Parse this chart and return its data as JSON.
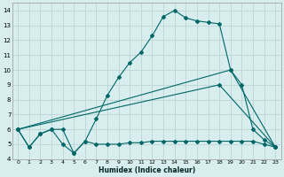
{
  "xlabel": "Humidex (Indice chaleur)",
  "bg_color": "#d8eeee",
  "grid_color": "#c0d8d8",
  "line_color": "#006666",
  "xlim": [
    -0.5,
    23.5
  ],
  "ylim": [
    4,
    14.5
  ],
  "xticks": [
    0,
    1,
    2,
    3,
    4,
    5,
    6,
    7,
    8,
    9,
    10,
    11,
    12,
    13,
    14,
    15,
    16,
    17,
    18,
    19,
    20,
    21,
    22,
    23
  ],
  "yticks": [
    4,
    5,
    6,
    7,
    8,
    9,
    10,
    11,
    12,
    13,
    14
  ],
  "series": [
    {
      "x": [
        0,
        1,
        2,
        3,
        4,
        5,
        6,
        7,
        8,
        9,
        10,
        11,
        12,
        13,
        14,
        15,
        16,
        17,
        18,
        19,
        20,
        21,
        22,
        23
      ],
      "y": [
        6.0,
        4.8,
        5.7,
        6.0,
        6.0,
        4.4,
        5.2,
        6.7,
        8.3,
        9.5,
        10.5,
        11.2,
        12.3,
        13.6,
        14.0,
        13.5,
        13.3,
        13.2,
        13.1,
        10.0,
        9.0,
        6.0,
        5.3,
        4.8
      ]
    },
    {
      "x": [
        0,
        1,
        2,
        3,
        4,
        5,
        6,
        7,
        8,
        9,
        10,
        11,
        12,
        13,
        14,
        15,
        16,
        17,
        18,
        19,
        20,
        21,
        22,
        23
      ],
      "y": [
        6.0,
        4.8,
        5.7,
        6.0,
        5.0,
        4.4,
        5.2,
        5.0,
        5.0,
        5.0,
        5.1,
        5.1,
        5.2,
        5.2,
        5.2,
        5.2,
        5.2,
        5.2,
        5.2,
        5.2,
        5.2,
        5.2,
        5.0,
        4.8
      ]
    },
    {
      "x": [
        0,
        18,
        23
      ],
      "y": [
        6.0,
        9.0,
        4.8
      ]
    },
    {
      "x": [
        0,
        19,
        23
      ],
      "y": [
        6.0,
        10.0,
        4.8
      ]
    }
  ]
}
